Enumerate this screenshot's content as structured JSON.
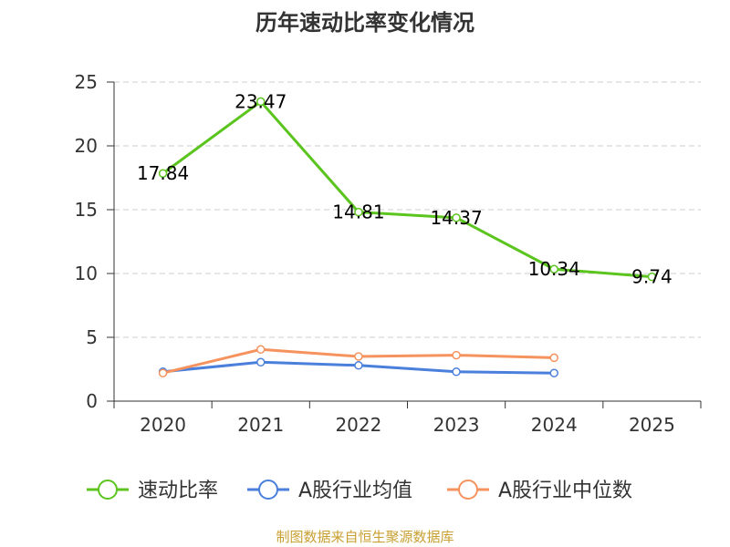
{
  "chart_data": {
    "type": "line",
    "title": "历年速动比率变化情况",
    "categories": [
      "2020",
      "2021",
      "2022",
      "2023",
      "2024",
      "2025"
    ],
    "ylim": [
      0,
      25
    ],
    "yticks": [
      0,
      5,
      10,
      15,
      20,
      25
    ],
    "grid": true,
    "legend_position": "bottom",
    "series": [
      {
        "name": "速动比率",
        "color": "#5cc41f",
        "values": [
          17.84,
          23.47,
          14.81,
          14.37,
          10.34,
          9.74
        ],
        "labels": [
          "17.84",
          "23.47",
          "14.81",
          "14.37",
          "10.34",
          "9.74"
        ]
      },
      {
        "name": "A股行业均值",
        "color": "#4a7fdc",
        "values": [
          2.3,
          3.05,
          2.8,
          2.3,
          2.2,
          null
        ]
      },
      {
        "name": "A股行业中位数",
        "color": "#f5925d",
        "values": [
          2.2,
          4.05,
          3.5,
          3.6,
          3.4,
          null
        ]
      }
    ]
  },
  "source_text": "制图数据来自恒生聚源数据库"
}
